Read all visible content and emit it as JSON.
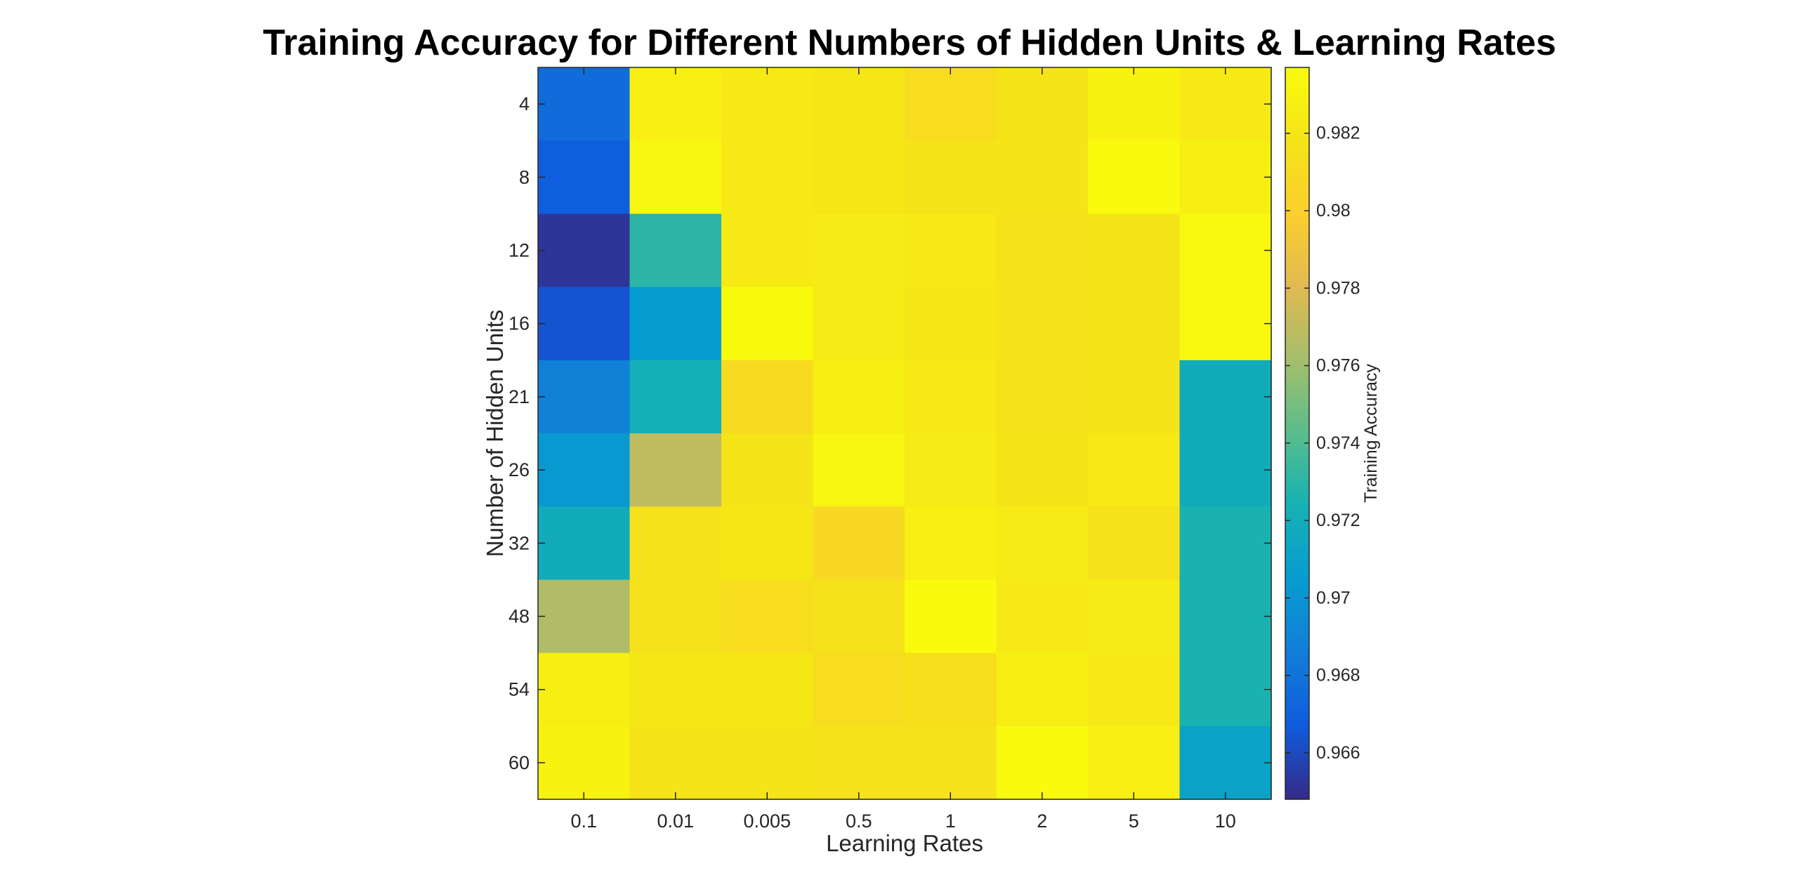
{
  "chart_data": {
    "type": "heatmap",
    "title": "Training Accuracy for Different Numbers of Hidden Units & Learning Rates",
    "xlabel": "Learning Rates",
    "ylabel": "Number of Hidden Units",
    "colorbar_label": "Training Accuracy",
    "colormap": "parula",
    "x_categories": [
      "0.1",
      "0.01",
      "0.005",
      "0.5",
      "1",
      "2",
      "5",
      "10"
    ],
    "y_categories": [
      "4",
      "8",
      "12",
      "16",
      "21",
      "26",
      "32",
      "48",
      "54",
      "60"
    ],
    "values": [
      [
        0.9676,
        0.9828,
        0.9822,
        0.982,
        0.9812,
        0.9818,
        0.983,
        0.9822
      ],
      [
        0.9668,
        0.9834,
        0.9822,
        0.982,
        0.9818,
        0.9818,
        0.9836,
        0.9826
      ],
      [
        0.9652,
        0.973,
        0.9822,
        0.9824,
        0.9822,
        0.9816,
        0.9818,
        0.9835
      ],
      [
        0.9664,
        0.9705,
        0.9836,
        0.9824,
        0.982,
        0.9816,
        0.9818,
        0.9835
      ],
      [
        0.9688,
        0.9722,
        0.981,
        0.9826,
        0.9822,
        0.9816,
        0.9818,
        0.9718
      ],
      [
        0.9703,
        0.977,
        0.9818,
        0.9832,
        0.9824,
        0.9818,
        0.9822,
        0.9718
      ],
      [
        0.9718,
        0.9816,
        0.982,
        0.9808,
        0.9828,
        0.9824,
        0.9816,
        0.9725
      ],
      [
        0.9765,
        0.9816,
        0.9812,
        0.9816,
        0.9836,
        0.9822,
        0.9824,
        0.9725
      ],
      [
        0.9826,
        0.982,
        0.982,
        0.9812,
        0.9814,
        0.9826,
        0.9822,
        0.9725
      ],
      [
        0.983,
        0.9818,
        0.9818,
        0.9816,
        0.9816,
        0.9836,
        0.9828,
        0.971
      ]
    ],
    "clim": [
      0.9648,
      0.9837
    ],
    "colorbar_ticks": [
      "0.966",
      "0.968",
      "0.97",
      "0.972",
      "0.974",
      "0.976",
      "0.978",
      "0.98",
      "0.982"
    ]
  }
}
